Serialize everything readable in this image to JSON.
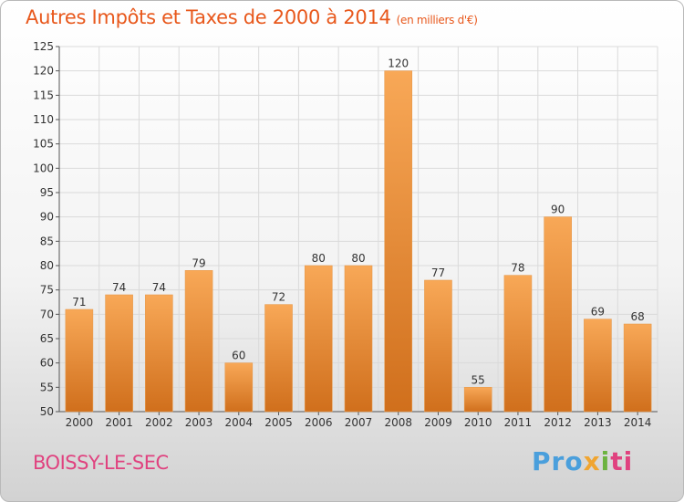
{
  "chart_data": {
    "type": "bar",
    "title": "Autres Impôts et Taxes de 2000 à 2014",
    "unit": "(en milliers d'€)",
    "categories": [
      "2000",
      "2001",
      "2002",
      "2003",
      "2004",
      "2005",
      "2006",
      "2007",
      "2008",
      "2009",
      "2010",
      "2011",
      "2012",
      "2013",
      "2014"
    ],
    "values": [
      71,
      74,
      74,
      79,
      60,
      72,
      80,
      80,
      120,
      77,
      55,
      78,
      90,
      69,
      68
    ],
    "ylim": [
      50,
      125
    ],
    "yticks": [
      50,
      55,
      60,
      65,
      70,
      75,
      80,
      85,
      90,
      95,
      100,
      105,
      110,
      115,
      120,
      125
    ],
    "grid": true,
    "colors": {
      "bar_light": "#f8a857",
      "bar_dark": "#d06f1c",
      "title": "#e8581c",
      "grid": "#dadada"
    }
  },
  "footer": {
    "city": "BOISSY-LE-SEC",
    "logo": {
      "p1": "Pro",
      "p2": "x",
      "p3": "i",
      "p4": "ti"
    }
  }
}
